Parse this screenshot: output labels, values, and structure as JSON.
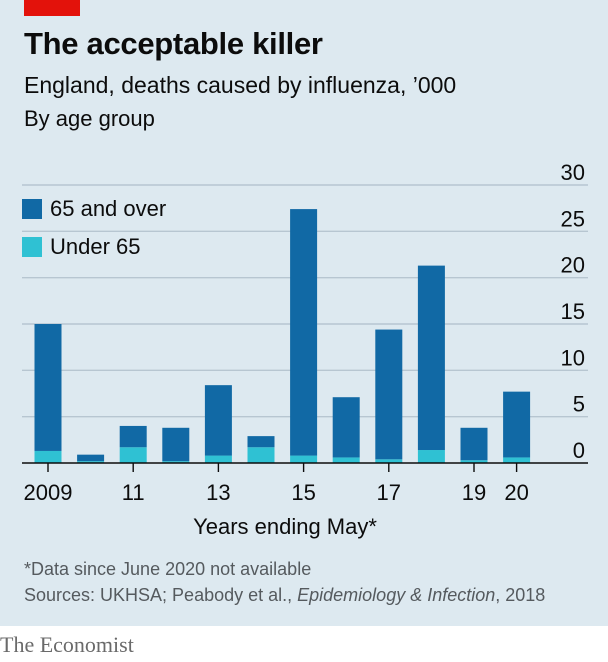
{
  "header": {
    "title": "The acceptable killer",
    "subtitle": "England, deaths caused by influenza, ’000",
    "subsubtitle": "By age group"
  },
  "legend": [
    {
      "label": "65 and over",
      "color": "#1169a5"
    },
    {
      "label": "Under 65",
      "color": "#2fc1d3"
    }
  ],
  "chart_data": {
    "type": "bar",
    "stacked": true,
    "categories": [
      "2009",
      "10",
      "11",
      "12",
      "13",
      "14",
      "15",
      "16",
      "17",
      "18",
      "19",
      "20"
    ],
    "x_tick_labels": [
      "2009",
      "11",
      "13",
      "15",
      "17",
      "19",
      "20"
    ],
    "series": [
      {
        "name": "Under 65",
        "color": "#2fc1d3",
        "values": [
          1.3,
          0.2,
          1.7,
          0.2,
          0.8,
          1.7,
          0.8,
          0.6,
          0.4,
          1.4,
          0.3,
          0.6
        ]
      },
      {
        "name": "65 and over",
        "color": "#1169a5",
        "values": [
          13.7,
          0.7,
          2.3,
          3.6,
          7.6,
          1.2,
          26.6,
          6.5,
          14.0,
          19.9,
          3.5,
          7.1
        ]
      }
    ],
    "xlabel": "Years ending May*",
    "ylabel": "",
    "ylim": [
      0,
      30
    ],
    "y_ticks": [
      0,
      5,
      10,
      15,
      20,
      25,
      30
    ],
    "y_axis_side": "right",
    "grid": true,
    "legend_position": "top-left"
  },
  "footer": {
    "note": "*Data since June 2020 not available",
    "source_prefix": "Sources: UKHSA; Peabody et al., ",
    "source_journal": "Epidemiology & Infection",
    "source_suffix": ", 2018",
    "brand": "The Economist"
  }
}
